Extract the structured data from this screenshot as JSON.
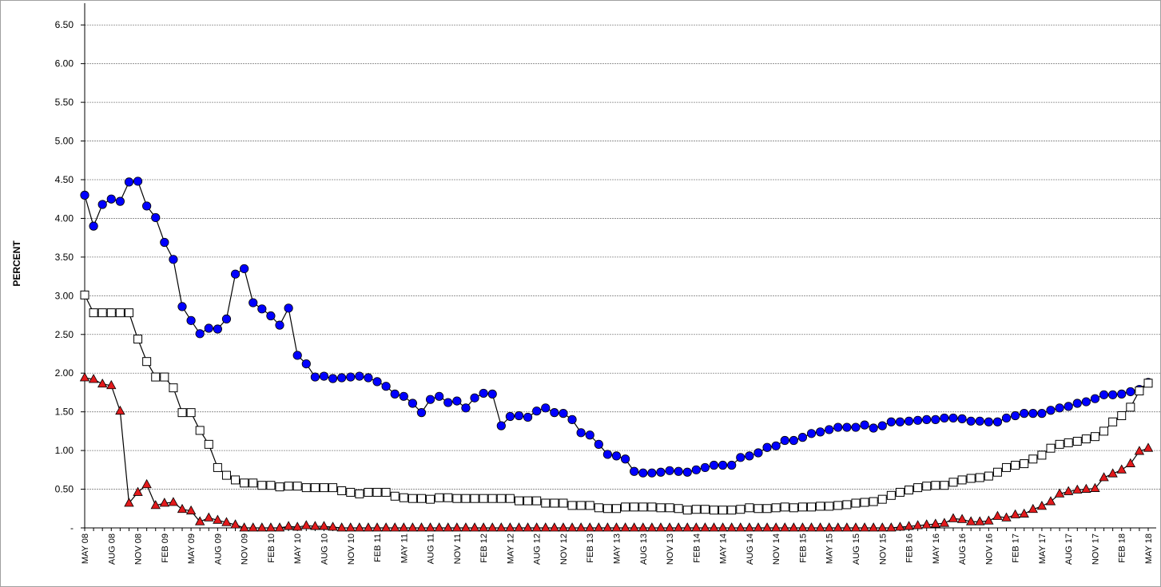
{
  "chart_data": {
    "type": "line",
    "y_label": "PERCENT",
    "categories": [
      "MAY 08",
      null,
      null,
      "AUG 08",
      null,
      null,
      "NOV 08",
      null,
      null,
      "FEB 09",
      null,
      null,
      "MAY 09",
      null,
      null,
      "AUG 09",
      null,
      null,
      "NOV 09",
      null,
      null,
      "FEB 10",
      null,
      null,
      "MAY 10",
      null,
      null,
      "AUG 10",
      null,
      null,
      "NOV 10",
      null,
      null,
      "FEB 11",
      null,
      null,
      "MAY 11",
      null,
      null,
      "AUG 11",
      null,
      null,
      "NOV 11",
      null,
      null,
      "FEB 12",
      null,
      null,
      "MAY 12",
      null,
      null,
      "AUG 12",
      null,
      null,
      "NOV 12",
      null,
      null,
      "FEB 13",
      null,
      null,
      "MAY 13",
      null,
      null,
      "AUG 13",
      null,
      null,
      "NOV 13",
      null,
      null,
      "FEB 14",
      null,
      null,
      "MAY 14",
      null,
      null,
      "AUG 14",
      null,
      null,
      "NOV 14",
      null,
      null,
      "FEB 15",
      null,
      null,
      "MAY 15",
      null,
      null,
      "AUG 15",
      null,
      null,
      "NOV 15",
      null,
      null,
      "FEB 16",
      null,
      null,
      "MAY 16",
      null,
      null,
      "AUG 16",
      null,
      null,
      "NOV 16",
      null,
      null,
      "FEB 17",
      null,
      null,
      "MAY 17",
      null,
      null,
      "AUG 17",
      null,
      null,
      "NOV 17",
      null,
      null,
      "FEB 18",
      null,
      null,
      "MAY 18"
    ],
    "series": [
      {
        "color": "#0000ff",
        "marker": "circle",
        "values": [
          4.3,
          3.9,
          4.18,
          4.25,
          4.22,
          4.47,
          4.48,
          4.16,
          4.01,
          3.69,
          3.47,
          2.86,
          2.68,
          2.51,
          2.58,
          2.57,
          2.7,
          3.28,
          3.35,
          2.91,
          2.83,
          2.74,
          2.62,
          2.84,
          2.23,
          2.12,
          1.95,
          1.96,
          1.93,
          1.94,
          1.95,
          1.96,
          1.94,
          1.89,
          1.83,
          1.73,
          1.7,
          1.61,
          1.49,
          1.66,
          1.7,
          1.62,
          1.64,
          1.55,
          1.68,
          1.74,
          1.73,
          1.32,
          1.44,
          1.45,
          1.43,
          1.51,
          1.55,
          1.49,
          1.48,
          1.4,
          1.23,
          1.2,
          1.08,
          0.95,
          0.93,
          0.89,
          0.73,
          0.71,
          0.71,
          0.72,
          0.74,
          0.73,
          0.72,
          0.75,
          0.78,
          0.81,
          0.81,
          0.81,
          0.91,
          0.93,
          0.97,
          1.04,
          1.06,
          1.13,
          1.13,
          1.17,
          1.22,
          1.24,
          1.27,
          1.3,
          1.3,
          1.3,
          1.33,
          1.29,
          1.32,
          1.37,
          1.37,
          1.38,
          1.39,
          1.4,
          1.4,
          1.42,
          1.42,
          1.41,
          1.38,
          1.38,
          1.37,
          1.37,
          1.42,
          1.45,
          1.48,
          1.48,
          1.48,
          1.52,
          1.55,
          1.57,
          1.61,
          1.63,
          1.67,
          1.72,
          1.72,
          1.73,
          1.76,
          1.79,
          1.88
        ]
      },
      {
        "color": "#ffffff",
        "marker": "square",
        "values": [
          3.01,
          2.78,
          2.78,
          2.78,
          2.78,
          2.78,
          2.44,
          2.15,
          1.95,
          1.95,
          1.81,
          1.49,
          1.49,
          1.26,
          1.08,
          0.78,
          0.68,
          0.62,
          0.58,
          0.58,
          0.55,
          0.55,
          0.53,
          0.54,
          0.54,
          0.52,
          0.52,
          0.52,
          0.52,
          0.48,
          0.46,
          0.44,
          0.46,
          0.46,
          0.46,
          0.41,
          0.39,
          0.38,
          0.38,
          0.37,
          0.39,
          0.39,
          0.38,
          0.38,
          0.38,
          0.38,
          0.38,
          0.38,
          0.38,
          0.35,
          0.35,
          0.35,
          0.32,
          0.32,
          0.32,
          0.29,
          0.29,
          0.29,
          0.26,
          0.25,
          0.25,
          0.27,
          0.27,
          0.27,
          0.27,
          0.26,
          0.26,
          0.25,
          0.23,
          0.24,
          0.24,
          0.23,
          0.23,
          0.23,
          0.24,
          0.26,
          0.25,
          0.25,
          0.26,
          0.27,
          0.26,
          0.27,
          0.27,
          0.28,
          0.28,
          0.29,
          0.3,
          0.32,
          0.33,
          0.34,
          0.37,
          0.42,
          0.46,
          0.49,
          0.52,
          0.54,
          0.55,
          0.55,
          0.59,
          0.62,
          0.64,
          0.65,
          0.67,
          0.72,
          0.78,
          0.81,
          0.83,
          0.89,
          0.94,
          1.03,
          1.08,
          1.1,
          1.12,
          1.15,
          1.18,
          1.25,
          1.37,
          1.45,
          1.56,
          1.77,
          1.87
        ]
      },
      {
        "color": "#e31a1c",
        "marker": "triangle",
        "values": [
          1.94,
          1.92,
          1.86,
          1.84,
          1.51,
          0.32,
          0.46,
          0.56,
          0.29,
          0.32,
          0.33,
          0.24,
          0.22,
          0.08,
          0.13,
          0.1,
          0.07,
          0.04,
          0.0,
          0.0,
          0.0,
          0.0,
          0.0,
          0.02,
          0.01,
          0.03,
          0.02,
          0.02,
          0.01,
          0.0,
          0.0,
          0.0,
          0.0,
          0.0,
          0.0,
          0.0,
          0.0,
          0.0,
          0.0,
          0.0,
          0.0,
          0.0,
          0.0,
          0.0,
          0.0,
          0.0,
          0.0,
          0.0,
          0.0,
          0.0,
          0.0,
          0.0,
          0.0,
          0.0,
          0.0,
          0.0,
          0.0,
          0.0,
          0.0,
          0.0,
          0.0,
          0.0,
          0.0,
          0.0,
          0.0,
          0.0,
          0.0,
          0.0,
          0.0,
          0.0,
          0.0,
          0.0,
          0.0,
          0.0,
          0.0,
          0.0,
          0.0,
          0.0,
          0.0,
          0.0,
          0.0,
          0.0,
          0.0,
          0.0,
          0.0,
          0.0,
          0.0,
          0.0,
          0.0,
          0.0,
          0.0,
          0.0,
          0.01,
          0.02,
          0.03,
          0.04,
          0.05,
          0.06,
          0.12,
          0.11,
          0.08,
          0.08,
          0.09,
          0.15,
          0.13,
          0.17,
          0.18,
          0.24,
          0.28,
          0.34,
          0.44,
          0.47,
          0.49,
          0.5,
          0.51,
          0.65,
          0.7,
          0.75,
          0.83,
          0.99,
          1.03
        ]
      }
    ],
    "ylim": [
      0,
      6.75
    ],
    "yticks": [
      {
        "value": 0,
        "label": "-"
      },
      {
        "value": 0.5,
        "label": "0.50"
      },
      {
        "value": 1,
        "label": "1.00"
      },
      {
        "value": 1.5,
        "label": "1.50"
      },
      {
        "value": 2,
        "label": "2.00"
      },
      {
        "value": 2.5,
        "label": "2.50"
      },
      {
        "value": 3,
        "label": "3.00"
      },
      {
        "value": 3.5,
        "label": "3.50"
      },
      {
        "value": 4,
        "label": "4.00"
      },
      {
        "value": 4.5,
        "label": "4.50"
      },
      {
        "value": 5,
        "label": "5.00"
      },
      {
        "value": 5.5,
        "label": "5.50"
      },
      {
        "value": 6,
        "label": "6.00"
      },
      {
        "value": 6.5,
        "label": "6.50"
      }
    ],
    "grid": true
  }
}
